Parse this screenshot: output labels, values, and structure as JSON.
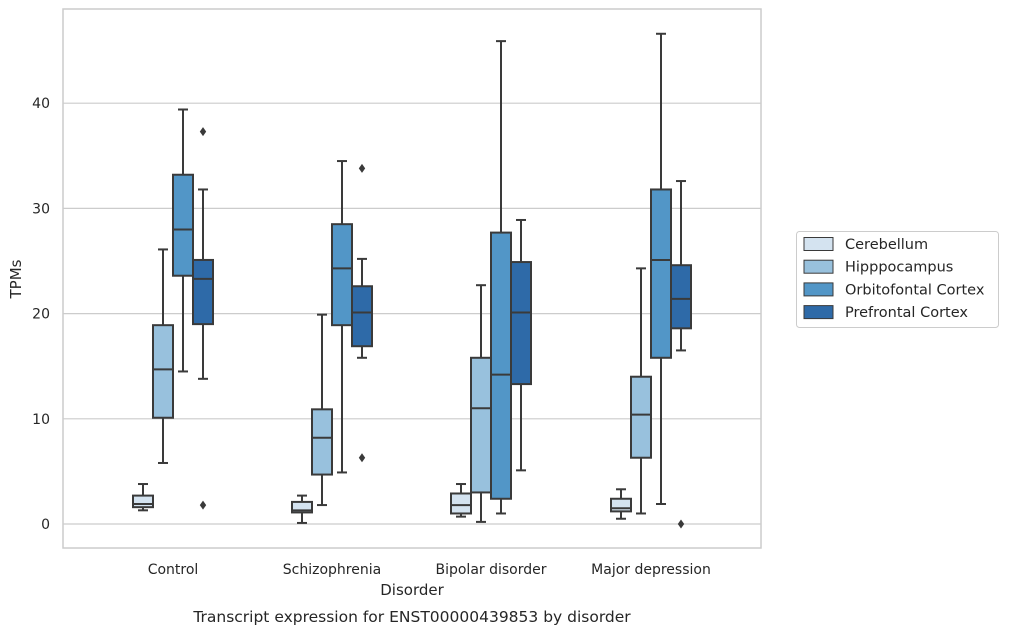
{
  "caption": "Transcript expression for ENST00000439853 by disorder",
  "chart_data": {
    "type": "box",
    "xlabel": "Disorder",
    "ylabel": "TPMs",
    "ylim": [
      -2.2,
      49
    ],
    "yticks": [
      0,
      10,
      20,
      30,
      40
    ],
    "grid": "horizontal",
    "legend_position": "right",
    "categories": [
      "Control",
      "Schizophrenia",
      "Bipolar disorder",
      "Major depression"
    ],
    "series": [
      {
        "name": "Cerebellum",
        "color": "#d4e3f0",
        "boxes": [
          {
            "whislo": 1.3,
            "q1": 1.6,
            "med": 1.9,
            "q3": 2.7,
            "whishi": 3.8,
            "fliers": []
          },
          {
            "whislo": 0.1,
            "q1": 1.1,
            "med": 1.3,
            "q3": 2.1,
            "whishi": 2.7,
            "fliers": []
          },
          {
            "whislo": 0.7,
            "q1": 1.0,
            "med": 1.8,
            "q3": 2.9,
            "whishi": 3.8,
            "fliers": []
          },
          {
            "whislo": 0.5,
            "q1": 1.2,
            "med": 1.5,
            "q3": 2.4,
            "whishi": 3.3,
            "fliers": []
          }
        ]
      },
      {
        "name": "Hipppocampus",
        "color": "#98c1dd",
        "boxes": [
          {
            "whislo": 5.8,
            "q1": 10.1,
            "med": 14.7,
            "q3": 18.9,
            "whishi": 26.1,
            "fliers": []
          },
          {
            "whislo": 1.8,
            "q1": 4.7,
            "med": 8.2,
            "q3": 10.9,
            "whishi": 19.9,
            "fliers": []
          },
          {
            "whislo": 0.2,
            "q1": 3.0,
            "med": 11.0,
            "q3": 15.8,
            "whishi": 22.7,
            "fliers": []
          },
          {
            "whislo": 1.0,
            "q1": 6.3,
            "med": 10.4,
            "q3": 14.0,
            "whishi": 24.3,
            "fliers": []
          }
        ]
      },
      {
        "name": "Orbitofontal Cortex",
        "color": "#5296c7",
        "boxes": [
          {
            "whislo": 14.5,
            "q1": 23.6,
            "med": 28.0,
            "q3": 33.2,
            "whishi": 39.4,
            "fliers": []
          },
          {
            "whislo": 4.9,
            "q1": 18.9,
            "med": 24.3,
            "q3": 28.5,
            "whishi": 34.5,
            "fliers": []
          },
          {
            "whislo": 1.0,
            "q1": 2.4,
            "med": 14.2,
            "q3": 27.7,
            "whishi": 45.9,
            "fliers": []
          },
          {
            "whislo": 1.9,
            "q1": 15.8,
            "med": 25.1,
            "q3": 31.8,
            "whishi": 46.6,
            "fliers": []
          }
        ]
      },
      {
        "name": "Prefrontal Cortex",
        "color": "#2e6aa8",
        "boxes": [
          {
            "whislo": 13.8,
            "q1": 19.0,
            "med": 23.3,
            "q3": 25.1,
            "whishi": 31.8,
            "fliers": [
              37.3,
              1.8
            ]
          },
          {
            "whislo": 15.8,
            "q1": 16.9,
            "med": 20.1,
            "q3": 22.6,
            "whishi": 25.2,
            "fliers": [
              33.8,
              6.3
            ]
          },
          {
            "whislo": 5.1,
            "q1": 13.3,
            "med": 20.1,
            "q3": 24.9,
            "whishi": 28.9,
            "fliers": []
          },
          {
            "whislo": 16.5,
            "q1": 18.6,
            "med": 21.4,
            "q3": 24.6,
            "whishi": 32.6,
            "fliers": [
              0.0
            ]
          }
        ]
      }
    ]
  }
}
